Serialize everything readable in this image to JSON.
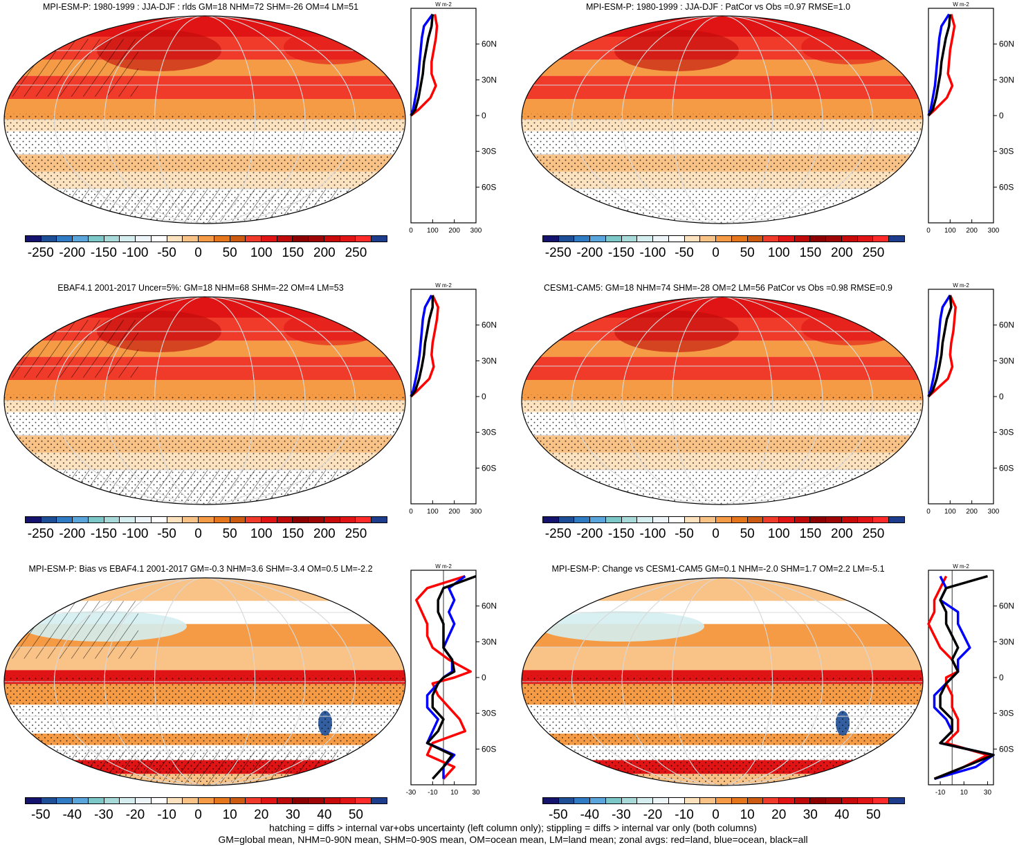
{
  "panels": [
    {
      "id": "p1",
      "title": "MPI-ESM-P: 1980-1999 : JJA-DJF : rlds GM=18 NHM=72 SHM=-26 OM=4 LM=51",
      "kind": "abs",
      "hatch": true
    },
    {
      "id": "p2",
      "title": "MPI-ESM-P: 1980-1999 : JJA-DJF : PatCor vs Obs =0.97 RMSE=1.0",
      "kind": "abs",
      "hatch": false
    },
    {
      "id": "p3",
      "title": "EBAF4.1 2001-2017 Uncer=5%: GM=18 NHM=68 SHM=-22 OM=4 LM=53",
      "kind": "abs",
      "hatch": true
    },
    {
      "id": "p4",
      "title": "CESM1-CAM5: GM=18 NHM=74 SHM=-28 OM=2 LM=56 PatCor vs Obs =0.98 RMSE=0.9",
      "kind": "abs",
      "hatch": false
    },
    {
      "id": "p5",
      "title": "MPI-ESM-P: Bias vs EBAF4.1 2001-2017 GM=-0.3 NHM=3.6 SHM=-3.4 OM=0.5 LM=-2.2",
      "kind": "diff",
      "hatch": true
    },
    {
      "id": "p6",
      "title": "MPI-ESM-P: Change vs CESM1-CAM5 GM=0.1 NHM=-2.0 SHM=1.7 OM=2.2 LM=-5.1",
      "kind": "diff",
      "hatch": false
    }
  ],
  "colorbar": {
    "colors": [
      "#14146e",
      "#1d4e96",
      "#2f7bc4",
      "#5aa6dc",
      "#7cc8c8",
      "#a8dada",
      "#d4eef0",
      "#eef5f8",
      "#ffffff",
      "#fde2c0",
      "#f9c287",
      "#f59b45",
      "#e6761c",
      "#cc5a10",
      "#f03a2a",
      "#e01414",
      "#c00a0a",
      "#8c0000",
      "#a00505",
      "#c80a0a",
      "#e01414",
      "#ff2a2a",
      "#1e3c8c"
    ],
    "abs_labels": [
      "-250",
      "-200",
      "-150",
      "-100",
      "-50",
      "0",
      "50",
      "100",
      "150",
      "200",
      "250"
    ],
    "diff_labels": [
      "-50",
      "-40",
      "-30",
      "-20",
      "-10",
      "0",
      "10",
      "20",
      "30",
      "40",
      "50"
    ]
  },
  "zonal_axis": {
    "unit": "W m-2",
    "lat_labels": [
      "60N",
      "30N",
      "0",
      "30S",
      "60S"
    ],
    "abs_ticks": [
      "0",
      "100",
      "200",
      "300"
    ],
    "diff_ticks_left": [
      "-30",
      "-10",
      "10",
      "30"
    ],
    "diff_ticks_right": [
      "-10",
      "10",
      "30"
    ]
  },
  "chart_data": [
    {
      "type": "line",
      "title": "MPI-ESM-P: 1980-1999 : JJA-DJF : rlds GM=18 NHM=72 SHM=-26 OM=4 LM=51",
      "xlabel": "W m-2",
      "xlim": [
        0,
        300
      ],
      "series": [
        {
          "name": "land",
          "color": "red",
          "lat": [
            85,
            75,
            65,
            55,
            45,
            35,
            25,
            15,
            5,
            0
          ],
          "values": [
            110,
            120,
            115,
            105,
            95,
            95,
            115,
            90,
            35,
            0
          ]
        },
        {
          "name": "ocean",
          "color": "blue",
          "lat": [
            85,
            75,
            65,
            55,
            45,
            35,
            25,
            15,
            5,
            0
          ],
          "values": [
            100,
            60,
            50,
            45,
            40,
            35,
            30,
            20,
            10,
            0
          ]
        },
        {
          "name": "all",
          "color": "black",
          "lat": [
            85,
            75,
            65,
            55,
            45,
            35,
            25,
            15,
            5,
            0
          ],
          "values": [
            100,
            95,
            80,
            70,
            60,
            55,
            45,
            35,
            20,
            0
          ]
        }
      ]
    },
    {
      "type": "line",
      "title": "MPI-ESM-P: 1980-1999 : JJA-DJF : PatCor vs Obs =0.97 RMSE=1.0",
      "xlabel": "W m-2",
      "xlim": [
        0,
        300
      ],
      "series": [
        {
          "name": "land",
          "color": "red",
          "lat": [
            85,
            75,
            65,
            55,
            45,
            35,
            25,
            15,
            5,
            0
          ],
          "values": [
            105,
            120,
            110,
            100,
            95,
            90,
            110,
            85,
            30,
            0
          ]
        },
        {
          "name": "ocean",
          "color": "blue",
          "lat": [
            85,
            75,
            65,
            55,
            45,
            35,
            25,
            15,
            5,
            0
          ],
          "values": [
            95,
            60,
            50,
            45,
            40,
            35,
            30,
            20,
            10,
            0
          ]
        },
        {
          "name": "all",
          "color": "black",
          "lat": [
            85,
            75,
            65,
            55,
            45,
            35,
            25,
            15,
            5,
            0
          ],
          "values": [
            100,
            95,
            80,
            70,
            60,
            55,
            45,
            35,
            20,
            0
          ]
        }
      ]
    },
    {
      "type": "line",
      "title": "EBAF4.1 2001-2017 Uncer=5%: GM=18 NHM=68 SHM=-22 OM=4 LM=53",
      "xlabel": "W m-2",
      "xlim": [
        0,
        300
      ],
      "series": [
        {
          "name": "land",
          "color": "red",
          "lat": [
            85,
            75,
            65,
            55,
            45,
            35,
            25,
            15,
            5,
            0
          ],
          "values": [
            100,
            125,
            120,
            110,
            100,
            95,
            105,
            85,
            30,
            0
          ]
        },
        {
          "name": "ocean",
          "color": "blue",
          "lat": [
            85,
            75,
            65,
            55,
            45,
            35,
            25,
            15,
            5,
            0
          ],
          "values": [
            95,
            65,
            55,
            50,
            45,
            40,
            32,
            22,
            10,
            0
          ]
        },
        {
          "name": "all",
          "color": "black",
          "lat": [
            85,
            75,
            65,
            55,
            45,
            35,
            25,
            15,
            5,
            0
          ],
          "values": [
            100,
            100,
            85,
            75,
            65,
            60,
            50,
            38,
            20,
            0
          ]
        }
      ]
    },
    {
      "type": "line",
      "title": "CESM1-CAM5: GM=18 NHM=74 SHM=-28 OM=2 LM=56 PatCor vs Obs =0.98 RMSE=0.9",
      "xlabel": "W m-2",
      "xlim": [
        0,
        300
      ],
      "series": [
        {
          "name": "land",
          "color": "red",
          "lat": [
            85,
            75,
            65,
            55,
            45,
            35,
            25,
            15,
            5,
            0
          ],
          "values": [
            100,
            125,
            120,
            115,
            105,
            100,
            110,
            90,
            30,
            0
          ]
        },
        {
          "name": "ocean",
          "color": "blue",
          "lat": [
            85,
            75,
            65,
            55,
            45,
            35,
            25,
            15,
            5,
            0
          ],
          "values": [
            100,
            65,
            55,
            50,
            45,
            40,
            32,
            22,
            10,
            0
          ]
        },
        {
          "name": "all",
          "color": "black",
          "lat": [
            85,
            75,
            65,
            55,
            45,
            35,
            25,
            15,
            5,
            0
          ],
          "values": [
            100,
            105,
            85,
            75,
            65,
            60,
            50,
            38,
            20,
            0
          ]
        }
      ]
    },
    {
      "type": "line",
      "title": "MPI-ESM-P: Bias vs EBAF4.1 2001-2017 GM=-0.3 NHM=3.6 SHM=-3.4 OM=0.5 LM=-2.2",
      "xlabel": "W m-2",
      "xlim": [
        -30,
        30
      ],
      "series": [
        {
          "name": "land",
          "color": "red",
          "lat": [
            85,
            75,
            65,
            55,
            45,
            35,
            25,
            15,
            5,
            0,
            -5,
            -15,
            -25,
            -35,
            -45,
            -55,
            -65,
            -75,
            -85
          ],
          "values": [
            20,
            -15,
            -25,
            -20,
            -15,
            -15,
            -10,
            5,
            25,
            10,
            -10,
            -5,
            5,
            15,
            20,
            -10,
            -15,
            10,
            0
          ]
        },
        {
          "name": "ocean",
          "color": "blue",
          "lat": [
            85,
            75,
            65,
            55,
            45,
            35,
            25,
            15,
            5,
            0,
            -5,
            -15,
            -25,
            -35,
            -45,
            -55,
            -65,
            -75,
            -85
          ],
          "values": [
            20,
            5,
            10,
            5,
            10,
            5,
            0,
            8,
            8,
            0,
            -5,
            -15,
            -15,
            -5,
            -10,
            -15,
            10,
            0,
            0
          ]
        },
        {
          "name": "all",
          "color": "black",
          "lat": [
            85,
            75,
            65,
            55,
            45,
            35,
            25,
            15,
            5,
            0,
            -5,
            -15,
            -25,
            -35,
            -45,
            -55,
            -65,
            -75,
            -85
          ],
          "values": [
            30,
            0,
            -5,
            -5,
            0,
            0,
            0,
            8,
            10,
            0,
            -5,
            -10,
            -10,
            0,
            -5,
            -15,
            8,
            0,
            -10
          ]
        }
      ]
    },
    {
      "type": "line",
      "title": "MPI-ESM-P: Change vs CESM1-CAM5 GM=0.1 NHM=-2.0 SHM=1.7 OM=2.2 LM=-5.1",
      "xlabel": "W m-2",
      "xlim": [
        -20,
        35
      ],
      "series": [
        {
          "name": "land",
          "color": "red",
          "lat": [
            85,
            75,
            65,
            55,
            45,
            35,
            25,
            15,
            5,
            0,
            -5,
            -15,
            -25,
            -35,
            -45,
            -55,
            -65,
            -75,
            -85
          ],
          "values": [
            -5,
            -10,
            -15,
            -15,
            -20,
            -15,
            -10,
            0,
            5,
            -5,
            -5,
            0,
            0,
            5,
            5,
            -5,
            30,
            10,
            -15
          ]
        },
        {
          "name": "ocean",
          "color": "blue",
          "lat": [
            85,
            75,
            65,
            55,
            45,
            35,
            25,
            15,
            5,
            0,
            -5,
            -15,
            -25,
            -35,
            -45,
            -55,
            -65,
            -75,
            -85
          ],
          "values": [
            -10,
            -5,
            -10,
            5,
            5,
            10,
            15,
            5,
            5,
            0,
            -5,
            -15,
            -15,
            -5,
            0,
            -10,
            35,
            20,
            -15
          ]
        },
        {
          "name": "all",
          "color": "black",
          "lat": [
            85,
            75,
            65,
            55,
            45,
            35,
            25,
            15,
            5,
            0,
            -5,
            -15,
            -25,
            -35,
            -45,
            -55,
            -65,
            -75,
            -85
          ],
          "values": [
            30,
            -5,
            -10,
            -5,
            -5,
            0,
            5,
            0,
            5,
            0,
            -5,
            -10,
            -10,
            0,
            0,
            -10,
            35,
            10,
            -15
          ]
        }
      ]
    }
  ],
  "footer": {
    "line1": "hatching = diffs > internal var+obs uncertainty (left column only); stippling = diffs > internal var only (both columns)",
    "line2": "GM=global mean, NHM=0-90N mean, SHM=0-90S mean, OM=ocean mean, LM=land mean; zonal avgs: red=land, blue=ocean, black=all"
  }
}
